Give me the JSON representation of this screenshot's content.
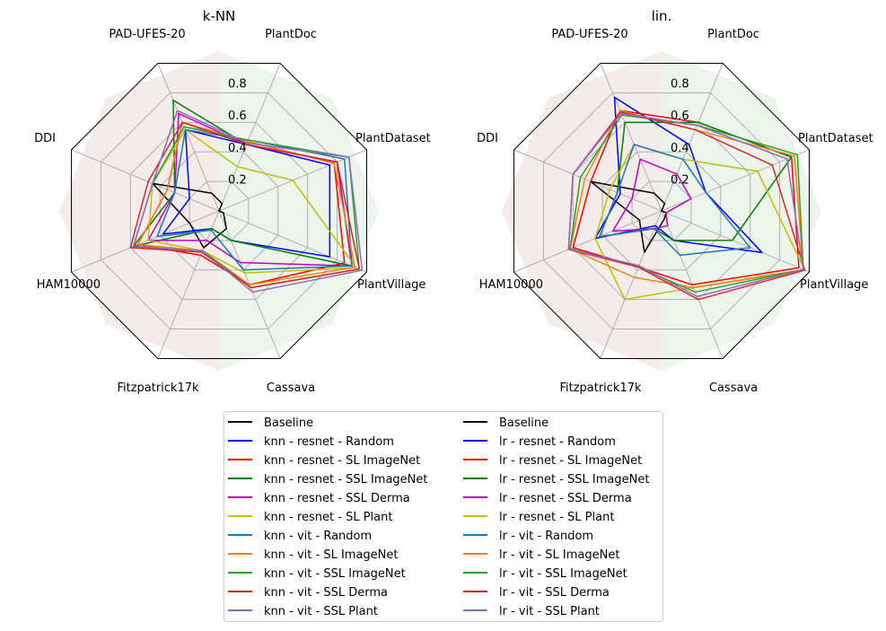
{
  "chart_data": [
    {
      "type": "radar",
      "title": "k-NN",
      "axes": [
        "PlantDoc",
        "PAD-UFES-20",
        "DDI",
        "HAM10000",
        "Fitzpatrick17k",
        "Cassava",
        "PlantVillage",
        "PlantDataset"
      ],
      "radial_ticks": [
        "0.2",
        "0.4",
        "0.6",
        "0.8"
      ],
      "rlim": [
        0,
        1
      ],
      "series": [
        {
          "name": "Baseline",
          "color": "#000000",
          "values": [
            0.05,
            0.12,
            0.45,
            0.2,
            0.25,
            0.12,
            0.03,
            0.0
          ]
        },
        {
          "name": "knn - resnet - Random",
          "color": "#0000ff",
          "values": [
            0.45,
            0.55,
            0.2,
            0.38,
            0.12,
            0.2,
            0.75,
            0.75
          ]
        },
        {
          "name": "knn - resnet - SL ImageNet",
          "color": "#ff0000",
          "values": [
            0.47,
            0.6,
            0.35,
            0.55,
            0.3,
            0.5,
            0.85,
            0.78
          ]
        },
        {
          "name": "knn - resnet - SSL ImageNet",
          "color": "#008000",
          "values": [
            0.45,
            0.75,
            0.3,
            0.58,
            0.12,
            0.2,
            0.9,
            0.8
          ]
        },
        {
          "name": "knn - resnet - SSL Derma",
          "color": "#bf00bf",
          "values": [
            0.45,
            0.66,
            0.3,
            0.48,
            0.2,
            0.35,
            0.9,
            0.8
          ]
        },
        {
          "name": "knn - resnet - SL Plant",
          "color": "#bfbf00",
          "values": [
            0.3,
            0.55,
            0.45,
            0.48,
            0.27,
            0.42,
            0.93,
            0.5
          ]
        },
        {
          "name": "knn - vit - Random",
          "color": "#1f77b4",
          "values": [
            0.48,
            0.55,
            0.3,
            0.42,
            0.13,
            0.4,
            0.9,
            0.85
          ]
        },
        {
          "name": "knn - vit - SL ImageNet",
          "color": "#ff7f0e",
          "values": [
            0.47,
            0.6,
            0.35,
            0.55,
            0.27,
            0.5,
            0.92,
            0.78
          ]
        },
        {
          "name": "knn - vit - SSL ImageNet",
          "color": "#2ca02c",
          "values": [
            0.48,
            0.57,
            0.45,
            0.58,
            0.27,
            0.52,
            0.95,
            0.88
          ]
        },
        {
          "name": "knn - vit - SSL Derma",
          "color": "#d62728",
          "values": [
            0.45,
            0.6,
            0.48,
            0.6,
            0.28,
            0.52,
            0.95,
            0.8
          ]
        },
        {
          "name": "knn - vit - SSL Plant",
          "color": "#9467bd",
          "values": [
            0.46,
            0.68,
            0.45,
            0.58,
            0.27,
            0.55,
            0.97,
            0.88
          ]
        }
      ]
    },
    {
      "type": "radar",
      "title": "lin.",
      "axes": [
        "PlantDoc",
        "PAD-UFES-20",
        "DDI",
        "HAM10000",
        "Fitzpatrick17k",
        "Cassava",
        "PlantVillage",
        "PlantDataset"
      ],
      "radial_ticks": [
        "0.2",
        "0.4",
        "0.6",
        "0.8"
      ],
      "rlim": [
        0,
        1
      ],
      "series": [
        {
          "name": "Baseline",
          "color": "#000000",
          "values": [
            0.05,
            0.12,
            0.48,
            0.15,
            0.28,
            0.05,
            0.03,
            0.0
          ]
        },
        {
          "name": "lr - resnet - Random",
          "color": "#0000ff",
          "values": [
            0.45,
            0.77,
            0.28,
            0.45,
            0.1,
            0.2,
            0.68,
            0.3
          ]
        },
        {
          "name": "lr - resnet - SL ImageNet",
          "color": "#ff0000",
          "values": [
            0.6,
            0.68,
            0.48,
            0.6,
            0.38,
            0.5,
            0.93,
            0.88
          ]
        },
        {
          "name": "lr - resnet - SSL ImageNet",
          "color": "#008000",
          "values": [
            0.6,
            0.6,
            0.3,
            0.42,
            0.12,
            0.2,
            0.48,
            0.88
          ]
        },
        {
          "name": "lr - resnet - SSL Derma",
          "color": "#bf00bf",
          "values": [
            0.25,
            0.35,
            0.2,
            0.33,
            0.12,
            0.1,
            0.03,
            0.2
          ]
        },
        {
          "name": "lr - resnet - SL Plant",
          "color": "#bfbf00",
          "values": [
            0.35,
            0.45,
            0.35,
            0.45,
            0.6,
            0.52,
            0.97,
            0.65
          ]
        },
        {
          "name": "lr - vit - Random",
          "color": "#1f77b4",
          "values": [
            0.35,
            0.45,
            0.3,
            0.42,
            0.12,
            0.3,
            0.6,
            0.3
          ]
        },
        {
          "name": "lr - vit - SL ImageNet",
          "color": "#ff7f0e",
          "values": [
            0.55,
            0.68,
            0.52,
            0.62,
            0.45,
            0.52,
            0.96,
            0.9
          ]
        },
        {
          "name": "lr - vit - SSL ImageNet",
          "color": "#2ca02c",
          "values": [
            0.58,
            0.65,
            0.55,
            0.62,
            0.38,
            0.55,
            0.96,
            0.92
          ]
        },
        {
          "name": "lr - vit - SSL Derma",
          "color": "#d62728",
          "values": [
            0.55,
            0.67,
            0.6,
            0.63,
            0.38,
            0.6,
            0.97,
            0.75
          ]
        },
        {
          "name": "lr - vit - SSL Plant",
          "color": "#9467bd",
          "values": [
            0.58,
            0.66,
            0.6,
            0.63,
            0.37,
            0.58,
            0.96,
            0.85
          ]
        }
      ]
    }
  ]
}
